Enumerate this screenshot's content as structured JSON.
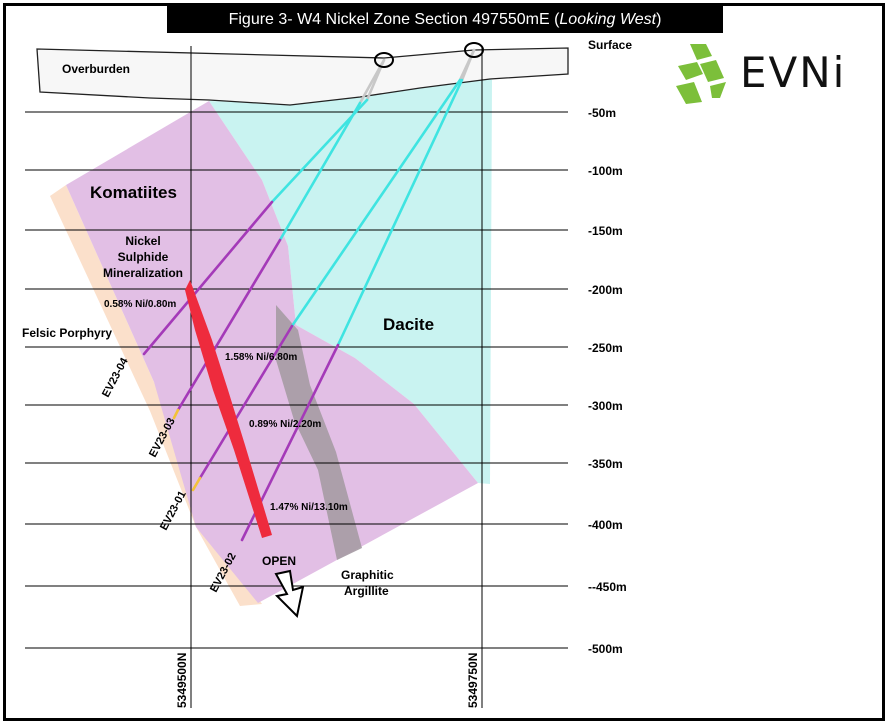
{
  "title": {
    "main": "Figure 3- W4 Nickel Zone Section 497550mE (",
    "italic": "Looking West",
    "close": ")"
  },
  "logo": {
    "text": "EVNi",
    "icon": "evni-green-mark",
    "color": "#7cbf3a"
  },
  "depth_labels": [
    "Surface",
    "-50m",
    "-100m",
    "-150m",
    "-200m",
    "-250m",
    "-300m",
    "-350m",
    "-400m",
    "--450m",
    "-500m"
  ],
  "northings": [
    "5349500N",
    "5349750N"
  ],
  "units": {
    "overburden": "Overburden",
    "komatiites": "Komatiites",
    "dacite": "Dacite",
    "felsic_porphyry": "Felsic Porphyry",
    "graphitic_argillite_1": "Graphitic",
    "graphitic_argillite_2": "Argillite",
    "mineralization_1": "Nickel",
    "mineralization_2": "Sulphide",
    "mineralization_3": "Mineralization",
    "open": "OPEN"
  },
  "holes": [
    "EV23-04",
    "EV23-03",
    "EV23-01",
    "EV23-02"
  ],
  "intercepts": [
    "0.58% Ni/0.80m",
    "1.58% Ni/6.80m",
    "0.89% Ni/2.20m",
    "1.47% Ni/13.10m"
  ],
  "colors": {
    "komatiite": "#e2bfe5",
    "dacite": "#c9f3f1",
    "felsic": "#fbe0cb",
    "argillite": "#a79ca5",
    "mineralization": "#ee2b3d",
    "hole_in_komatiite": "#a43ab8",
    "hole_in_dacite": "#3fe4e1",
    "hole_in_overburden": "#c8c8c8",
    "hole_in_felsic": "#f2c23a"
  }
}
